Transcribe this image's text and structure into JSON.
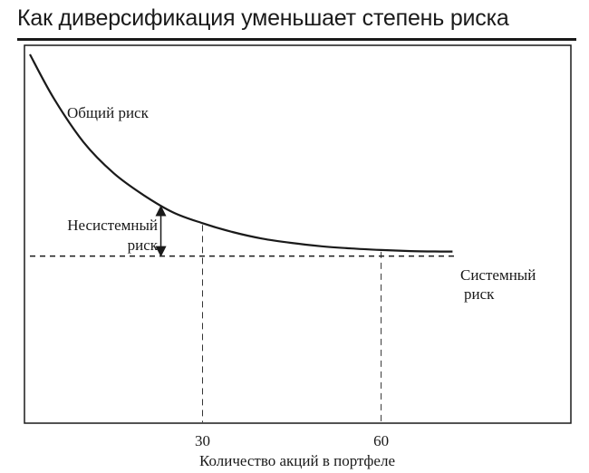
{
  "title": "Как диверсификация уменьшает степень риска",
  "chart_data": {
    "type": "line",
    "title": "Как диверсификация уменьшает степень риска",
    "xlabel": "Количество акций в портфеле",
    "ylabel": "",
    "x_ticks": [
      30,
      60
    ],
    "xlim": [
      1,
      73
    ],
    "series": [
      {
        "name": "Общий риск",
        "x": [
          1,
          5,
          10,
          15,
          20,
          25,
          30,
          35,
          40,
          45,
          50,
          55,
          60,
          65,
          70,
          72
        ],
        "y": [
          100,
          80,
          60,
          46,
          36,
          28,
          23,
          19,
          16,
          14,
          12.5,
          11.5,
          10.8,
          10.3,
          10.1,
          10.1
        ]
      }
    ],
    "systematic_risk_level": 8,
    "annotations": {
      "total_risk": "Общий риск",
      "unsystematic_risk": [
        "Несистемный",
        "риск"
      ],
      "systematic_risk": [
        "Системный",
        "риск"
      ]
    },
    "guide_lines_at_x": [
      30,
      60
    ],
    "unsystematic_arrow_at_x": 23,
    "grid": false,
    "legend": "none"
  },
  "colors": {
    "ink": "#1a1a1a",
    "guide": "#333333"
  }
}
